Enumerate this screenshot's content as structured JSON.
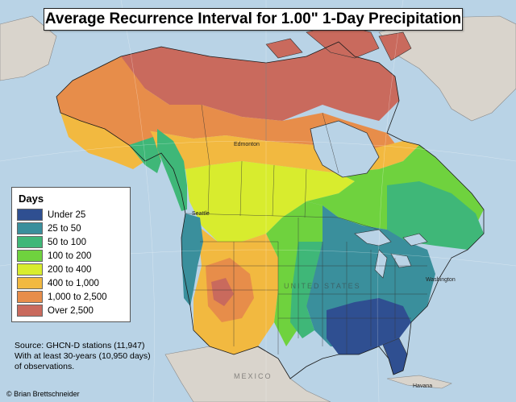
{
  "title": "Average Recurrence Interval for 1.00\" 1-Day Precipitation",
  "legend": {
    "title": "Days",
    "items": [
      {
        "label": "Under 25",
        "color": "#2f4f91"
      },
      {
        "label": "25 to 50",
        "color": "#3a8f9c"
      },
      {
        "label": "50 to 100",
        "color": "#3fb778"
      },
      {
        "label": "100 to 200",
        "color": "#6fd23e"
      },
      {
        "label": "200 to 400",
        "color": "#d8ec2e"
      },
      {
        "label": "400 to 1,000",
        "color": "#f2b940"
      },
      {
        "label": "1,000 to 2,500",
        "color": "#e78d4a"
      },
      {
        "label": "Over 2,500",
        "color": "#c96a5d"
      }
    ]
  },
  "source_lines": [
    "Source: GHCN-D stations (11,947)",
    "With at least 30-years (10,950 days)",
    "of observations."
  ],
  "credit": "© Brian Brettschneider",
  "place_labels": [
    "Edmonton",
    "Seattle",
    "Washington",
    "Havana"
  ],
  "country_labels": [
    "UNITED STATES",
    "MEXICO"
  ],
  "colors": {
    "ocean": "#b9d3e6",
    "land_other": "#d9d4cc",
    "outline": "#1a1a1a"
  }
}
